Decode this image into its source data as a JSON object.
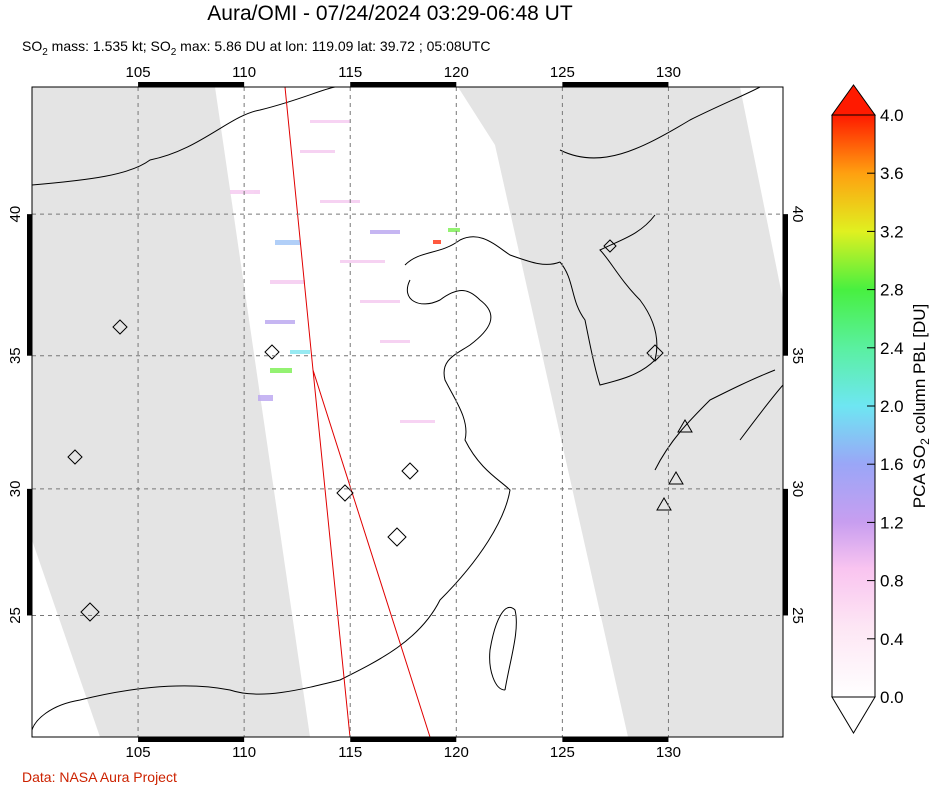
{
  "title": "Aura/OMI - 07/24/2024 03:29-06:48 UT",
  "subtitle": [
    "SO",
    "2",
    " mass: 1.535 kt; SO",
    "2",
    " max: 5.86 DU at lon: 119.09 lat: 39.72 ; 05:08UTC"
  ],
  "map": {
    "lon_range": [
      100,
      135.4
    ],
    "lat_range": [
      20,
      44.2
    ],
    "lon_ticks": [
      105,
      110,
      115,
      120,
      125,
      130
    ],
    "lat_ticks": [
      25,
      30,
      35,
      40
    ]
  },
  "colorbar": {
    "label": [
      "PCA SO",
      "2",
      " column PBL [DU]"
    ],
    "range": [
      0,
      4
    ],
    "ticks": [
      {
        "value": 0,
        "label": "0.0"
      },
      {
        "value": 0.4,
        "label": "0.4"
      },
      {
        "value": 0.8,
        "label": "0.8"
      },
      {
        "value": 1.2,
        "label": "1.2"
      },
      {
        "value": 1.6,
        "label": "1.6"
      },
      {
        "value": 2,
        "label": "2.0"
      },
      {
        "value": 2.4,
        "label": "2.4"
      },
      {
        "value": 2.8,
        "label": "2.8"
      },
      {
        "value": 3.2,
        "label": "3.2"
      },
      {
        "value": 3.6,
        "label": "3.6"
      },
      {
        "value": 4,
        "label": "4.0"
      }
    ]
  },
  "credit": "Data: NASA Aura Project"
}
